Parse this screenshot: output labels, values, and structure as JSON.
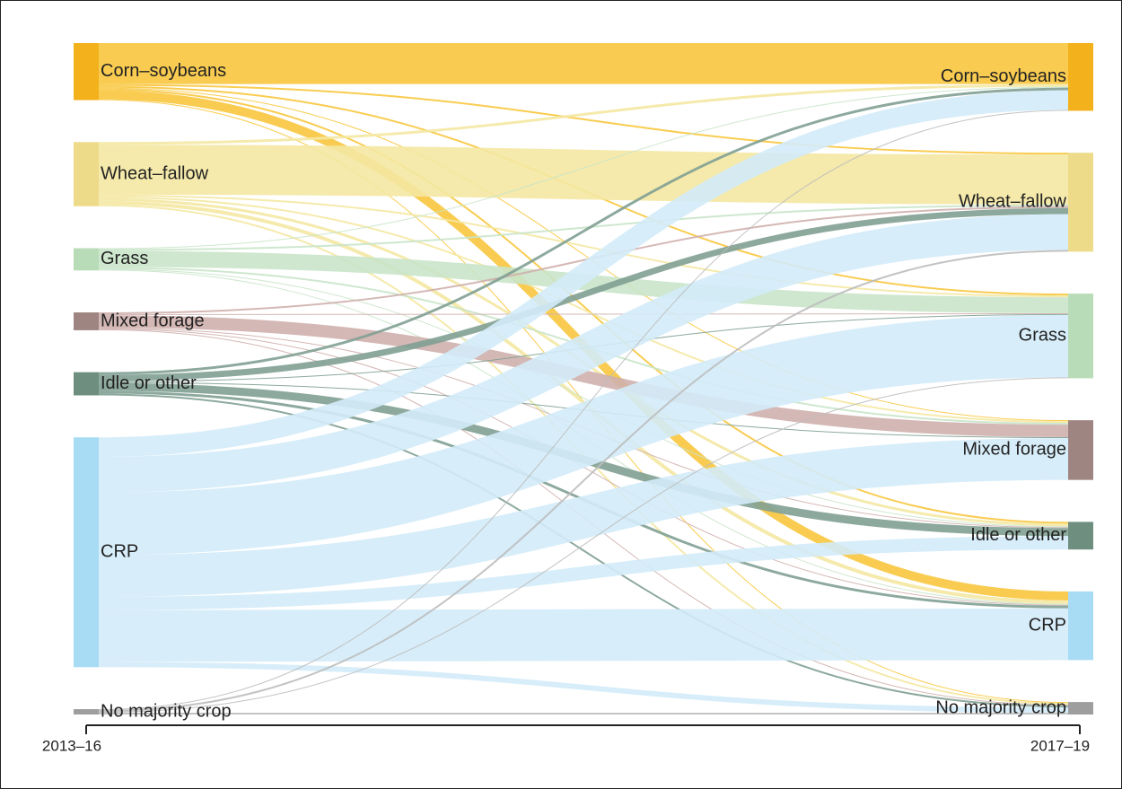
{
  "chart_data": {
    "type": "sankey",
    "column_labels": [
      "2013–16",
      "2017–19"
    ],
    "sources": [
      {
        "name": "Corn–soybeans",
        "color": "#f3b11b",
        "link_color": "#f8c63e"
      },
      {
        "name": "Wheat–fallow",
        "color": "#eedb8a",
        "link_color": "#f4e8a2"
      },
      {
        "name": "Grass",
        "color": "#b8dcb8",
        "link_color": "#c9e4c9"
      },
      {
        "name": "Mixed forage",
        "color": "#9e8582",
        "link_color": "#cfb0ad"
      },
      {
        "name": "Idle or other",
        "color": "#6e8f80",
        "link_color": "#81a093"
      },
      {
        "name": "CRP",
        "color": "#a8dcf5",
        "link_color": "#d3ebf8"
      },
      {
        "name": "No majority crop",
        "color": "#9e9e9e",
        "link_color": "#bdbdbd"
      }
    ],
    "targets": [
      {
        "name": "Corn–soybeans",
        "color": "#f3b11b"
      },
      {
        "name": "Wheat–fallow",
        "color": "#eedb8a"
      },
      {
        "name": "Grass",
        "color": "#b8dcb8"
      },
      {
        "name": "Mixed forage",
        "color": "#9e8582"
      },
      {
        "name": "Idle or other",
        "color": "#6e8f80"
      },
      {
        "name": "CRP",
        "color": "#a8dcf5"
      },
      {
        "name": "No majority crop",
        "color": "#9e9e9e"
      }
    ],
    "links": [
      {
        "source": 0,
        "target": 0,
        "value": 46
      },
      {
        "source": 0,
        "target": 1,
        "value": 2
      },
      {
        "source": 0,
        "target": 2,
        "value": 2
      },
      {
        "source": 0,
        "target": 3,
        "value": 1
      },
      {
        "source": 0,
        "target": 4,
        "value": 2
      },
      {
        "source": 0,
        "target": 5,
        "value": 10
      },
      {
        "source": 0,
        "target": 6,
        "value": 1
      },
      {
        "source": 1,
        "target": 0,
        "value": 3
      },
      {
        "source": 1,
        "target": 1,
        "value": 56
      },
      {
        "source": 1,
        "target": 2,
        "value": 2
      },
      {
        "source": 1,
        "target": 3,
        "value": 2
      },
      {
        "source": 1,
        "target": 4,
        "value": 3
      },
      {
        "source": 1,
        "target": 5,
        "value": 4
      },
      {
        "source": 1,
        "target": 6,
        "value": 2
      },
      {
        "source": 2,
        "target": 0,
        "value": 1
      },
      {
        "source": 2,
        "target": 1,
        "value": 2
      },
      {
        "source": 2,
        "target": 2,
        "value": 18
      },
      {
        "source": 2,
        "target": 3,
        "value": 2
      },
      {
        "source": 2,
        "target": 4,
        "value": 1
      },
      {
        "source": 2,
        "target": 5,
        "value": 1
      },
      {
        "source": 3,
        "target": 1,
        "value": 2
      },
      {
        "source": 3,
        "target": 2,
        "value": 1
      },
      {
        "source": 3,
        "target": 3,
        "value": 14
      },
      {
        "source": 3,
        "target": 4,
        "value": 1
      },
      {
        "source": 3,
        "target": 5,
        "value": 1
      },
      {
        "source": 3,
        "target": 6,
        "value": 1
      },
      {
        "source": 4,
        "target": 0,
        "value": 3
      },
      {
        "source": 4,
        "target": 1,
        "value": 7
      },
      {
        "source": 4,
        "target": 2,
        "value": 1
      },
      {
        "source": 4,
        "target": 3,
        "value": 1
      },
      {
        "source": 4,
        "target": 4,
        "value": 9
      },
      {
        "source": 4,
        "target": 5,
        "value": 3
      },
      {
        "source": 4,
        "target": 6,
        "value": 2
      },
      {
        "source": 5,
        "target": 0,
        "value": 22
      },
      {
        "source": 5,
        "target": 1,
        "value": 40
      },
      {
        "source": 5,
        "target": 2,
        "value": 70
      },
      {
        "source": 5,
        "target": 3,
        "value": 47
      },
      {
        "source": 5,
        "target": 4,
        "value": 15
      },
      {
        "source": 5,
        "target": 5,
        "value": 58
      },
      {
        "source": 5,
        "target": 6,
        "value": 6
      },
      {
        "source": 6,
        "target": 0,
        "value": 1
      },
      {
        "source": 6,
        "target": 1,
        "value": 2
      },
      {
        "source": 6,
        "target": 2,
        "value": 1
      },
      {
        "source": 6,
        "target": 6,
        "value": 2
      }
    ]
  }
}
